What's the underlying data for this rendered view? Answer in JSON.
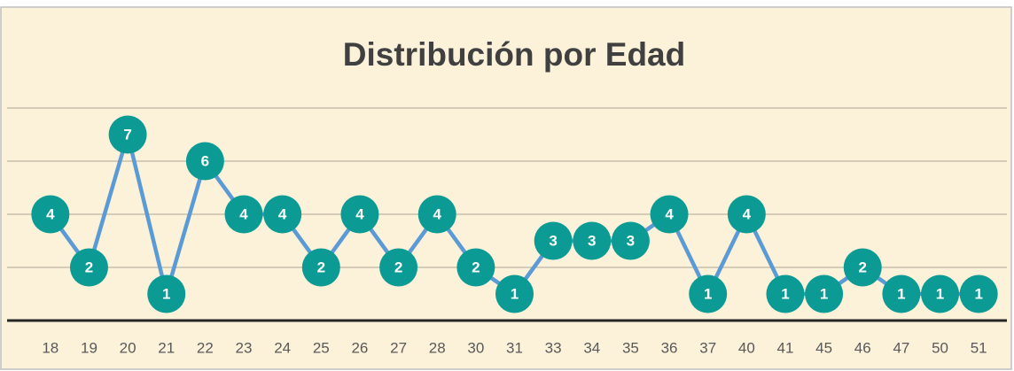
{
  "chart_data": {
    "type": "line",
    "title": "Distribución por Edad",
    "categories": [
      "18",
      "19",
      "20",
      "21",
      "22",
      "23",
      "24",
      "25",
      "26",
      "27",
      "28",
      "30",
      "31",
      "33",
      "34",
      "35",
      "36",
      "37",
      "40",
      "41",
      "45",
      "46",
      "47",
      "50",
      "51"
    ],
    "values": [
      4,
      2,
      7,
      1,
      6,
      4,
      4,
      2,
      4,
      2,
      4,
      2,
      1,
      3,
      3,
      3,
      4,
      1,
      4,
      1,
      1,
      2,
      1,
      1,
      1
    ],
    "color": "#5b9bd5",
    "marker_color": "#0b9b94",
    "ylim": [
      0,
      8
    ],
    "yticks": [
      0,
      2,
      4,
      6,
      8
    ],
    "grid": true
  }
}
